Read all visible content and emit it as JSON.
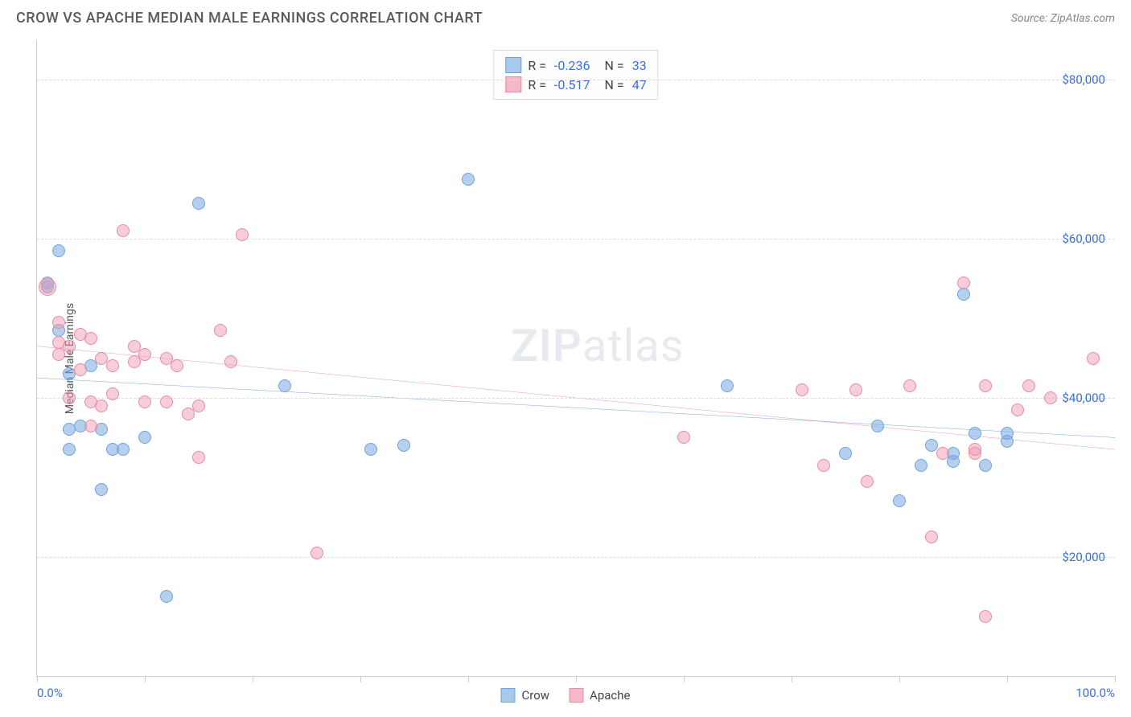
{
  "header": {
    "title": "CROW VS APACHE MEDIAN MALE EARNINGS CORRELATION CHART",
    "source": "Source: ZipAtlas.com"
  },
  "watermark": {
    "zip": "ZIP",
    "atlas": "atlas"
  },
  "chart": {
    "type": "scatter",
    "y_axis": {
      "label": "Median Male Earnings",
      "min": 5000,
      "max": 85000,
      "ticks": [
        20000,
        40000,
        60000,
        80000
      ],
      "tick_labels": [
        "$20,000",
        "$40,000",
        "$60,000",
        "$80,000"
      ],
      "label_color": "#3b6fd6",
      "label_fontsize": 15,
      "grid_color": "#dddddd",
      "grid_dash": true
    },
    "x_axis": {
      "min": 0,
      "max": 100,
      "ticks": [
        0,
        10,
        20,
        30,
        40,
        50,
        60,
        70,
        80,
        90,
        100
      ],
      "end_labels": {
        "left": "0.0%",
        "right": "100.0%"
      },
      "label_color": "#3b6fd6",
      "label_fontsize": 15
    },
    "legend_top": {
      "rows": [
        {
          "swatch_fill": "#a8c8ec",
          "swatch_border": "#6fa3de",
          "r_label": "R =",
          "r_value": "-0.236",
          "n_label": "N =",
          "n_value": "33"
        },
        {
          "swatch_fill": "#f5b8c6",
          "swatch_border": "#e88ba3",
          "r_label": "R =",
          "r_value": "-0.517",
          "n_label": "N =",
          "n_value": "47"
        }
      ]
    },
    "legend_bottom": [
      {
        "swatch_fill": "#a8c8ec",
        "swatch_border": "#6fa3de",
        "label": "Crow"
      },
      {
        "swatch_fill": "#f5b8c6",
        "swatch_border": "#e88ba3",
        "label": "Apache"
      }
    ],
    "series": [
      {
        "name": "Crow",
        "marker_fill": "rgba(120,170,225,0.55)",
        "marker_border": "#6fa3de",
        "marker_radius": 8,
        "trend": {
          "color": "#2d6bd0",
          "width": 2.5,
          "y_start": 42500,
          "y_end": 35000
        },
        "points": [
          {
            "x": 1,
            "y": 54000
          },
          {
            "x": 1,
            "y": 54500
          },
          {
            "x": 2,
            "y": 58500
          },
          {
            "x": 2,
            "y": 48500
          },
          {
            "x": 3,
            "y": 43000
          },
          {
            "x": 3,
            "y": 36000
          },
          {
            "x": 3,
            "y": 33500
          },
          {
            "x": 4,
            "y": 36500
          },
          {
            "x": 5,
            "y": 44000
          },
          {
            "x": 6,
            "y": 28500
          },
          {
            "x": 6,
            "y": 36000
          },
          {
            "x": 7,
            "y": 33500
          },
          {
            "x": 8,
            "y": 33500
          },
          {
            "x": 10,
            "y": 35000
          },
          {
            "x": 12,
            "y": 15000
          },
          {
            "x": 15,
            "y": 64500
          },
          {
            "x": 23,
            "y": 41500
          },
          {
            "x": 31,
            "y": 33500
          },
          {
            "x": 34,
            "y": 34000
          },
          {
            "x": 40,
            "y": 67500
          },
          {
            "x": 64,
            "y": 41500
          },
          {
            "x": 75,
            "y": 33000
          },
          {
            "x": 78,
            "y": 36500
          },
          {
            "x": 80,
            "y": 27000
          },
          {
            "x": 82,
            "y": 31500
          },
          {
            "x": 83,
            "y": 34000
          },
          {
            "x": 85,
            "y": 33000
          },
          {
            "x": 85,
            "y": 32000
          },
          {
            "x": 86,
            "y": 53000
          },
          {
            "x": 87,
            "y": 35500
          },
          {
            "x": 88,
            "y": 31500
          },
          {
            "x": 90,
            "y": 34500
          },
          {
            "x": 90,
            "y": 35500
          }
        ]
      },
      {
        "name": "Apache",
        "marker_fill": "rgba(240,155,180,0.5)",
        "marker_border": "#e88ba3",
        "marker_radius": 8,
        "trend": {
          "color": "#e05a80",
          "width": 2.5,
          "y_start": 46500,
          "y_end": 33500
        },
        "points": [
          {
            "x": 1,
            "y": 54000,
            "r": 11
          },
          {
            "x": 2,
            "y": 47000
          },
          {
            "x": 2,
            "y": 49500
          },
          {
            "x": 2,
            "y": 45500
          },
          {
            "x": 3,
            "y": 40000
          },
          {
            "x": 3,
            "y": 46500
          },
          {
            "x": 4,
            "y": 48000
          },
          {
            "x": 4,
            "y": 43500
          },
          {
            "x": 5,
            "y": 47500
          },
          {
            "x": 5,
            "y": 36500
          },
          {
            "x": 5,
            "y": 39500
          },
          {
            "x": 6,
            "y": 39000
          },
          {
            "x": 6,
            "y": 45000
          },
          {
            "x": 7,
            "y": 44000
          },
          {
            "x": 7,
            "y": 40500
          },
          {
            "x": 8,
            "y": 61000
          },
          {
            "x": 9,
            "y": 44500
          },
          {
            "x": 9,
            "y": 46500
          },
          {
            "x": 10,
            "y": 39500
          },
          {
            "x": 10,
            "y": 45500
          },
          {
            "x": 12,
            "y": 45000
          },
          {
            "x": 12,
            "y": 39500
          },
          {
            "x": 13,
            "y": 44000
          },
          {
            "x": 14,
            "y": 38000
          },
          {
            "x": 15,
            "y": 32500
          },
          {
            "x": 15,
            "y": 39000
          },
          {
            "x": 17,
            "y": 48500
          },
          {
            "x": 18,
            "y": 44500
          },
          {
            "x": 19,
            "y": 60500
          },
          {
            "x": 26,
            "y": 20500
          },
          {
            "x": 60,
            "y": 35000
          },
          {
            "x": 71,
            "y": 41000
          },
          {
            "x": 73,
            "y": 31500
          },
          {
            "x": 76,
            "y": 41000
          },
          {
            "x": 77,
            "y": 29500
          },
          {
            "x": 81,
            "y": 41500
          },
          {
            "x": 83,
            "y": 22500
          },
          {
            "x": 84,
            "y": 33000
          },
          {
            "x": 86,
            "y": 54500
          },
          {
            "x": 87,
            "y": 33000
          },
          {
            "x": 88,
            "y": 41500
          },
          {
            "x": 88,
            "y": 12500
          },
          {
            "x": 91,
            "y": 38500
          },
          {
            "x": 92,
            "y": 41500
          },
          {
            "x": 94,
            "y": 40000
          },
          {
            "x": 98,
            "y": 45000
          },
          {
            "x": 87,
            "y": 33500
          }
        ]
      }
    ],
    "background_color": "#ffffff",
    "border_color": "#cccccc"
  }
}
